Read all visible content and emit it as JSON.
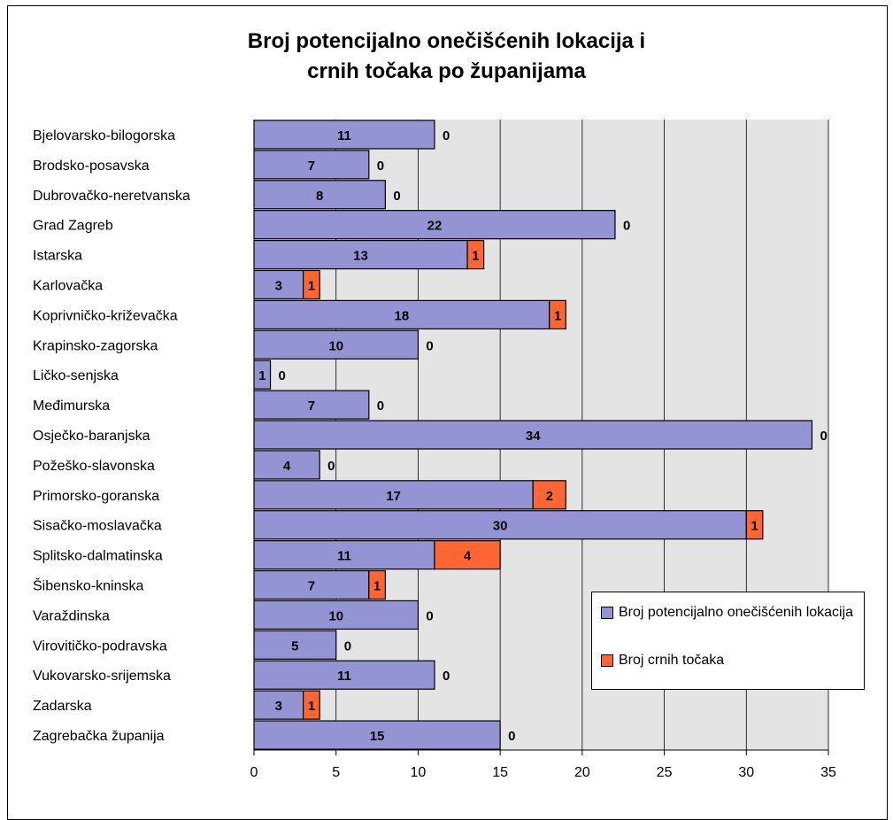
{
  "chart_data": {
    "type": "bar",
    "orientation": "horizontal",
    "stacked": true,
    "title": [
      "Broj potencijalno onečišćenih lokacija i",
      "crnih točaka po županijama"
    ],
    "categories": [
      "Bjelovarsko-bilogorska",
      "Brodsko-posavska",
      "Dubrovačko-neretvanska",
      "Grad Zagreb",
      "Istarska",
      "Karlovačka",
      "Koprivničko-križevačka",
      "Krapinsko-zagorska",
      "Ličko-senjska",
      "Međimurska",
      "Osječko-baranjska",
      "Požeško-slavonska",
      "Primorsko-goranska",
      "Sisačko-moslavačka",
      "Splitsko-dalmatinska",
      "Šibensko-kninska",
      "Varaždinska",
      "Virovitičko-podravska",
      "Vukovarsko-srijemska",
      "Zadarska",
      "Zagrebačka županija"
    ],
    "series": [
      {
        "name": "Broj potencijalno onečišćenih lokacija",
        "color": "#9494d4",
        "values": [
          11,
          7,
          8,
          22,
          13,
          3,
          18,
          10,
          1,
          7,
          34,
          4,
          17,
          30,
          11,
          7,
          10,
          5,
          11,
          3,
          15
        ]
      },
      {
        "name": "Broj crnih točaka",
        "color": "#ff6633",
        "values": [
          0,
          0,
          0,
          0,
          1,
          1,
          1,
          0,
          0,
          0,
          0,
          0,
          2,
          1,
          4,
          1,
          0,
          0,
          0,
          1,
          0
        ]
      }
    ],
    "xlim": [
      0,
      35
    ],
    "xticks": [
      "0",
      "5",
      "10",
      "15",
      "20",
      "25",
      "30",
      "35"
    ],
    "grid": true,
    "legend_placement": "lower-right"
  }
}
